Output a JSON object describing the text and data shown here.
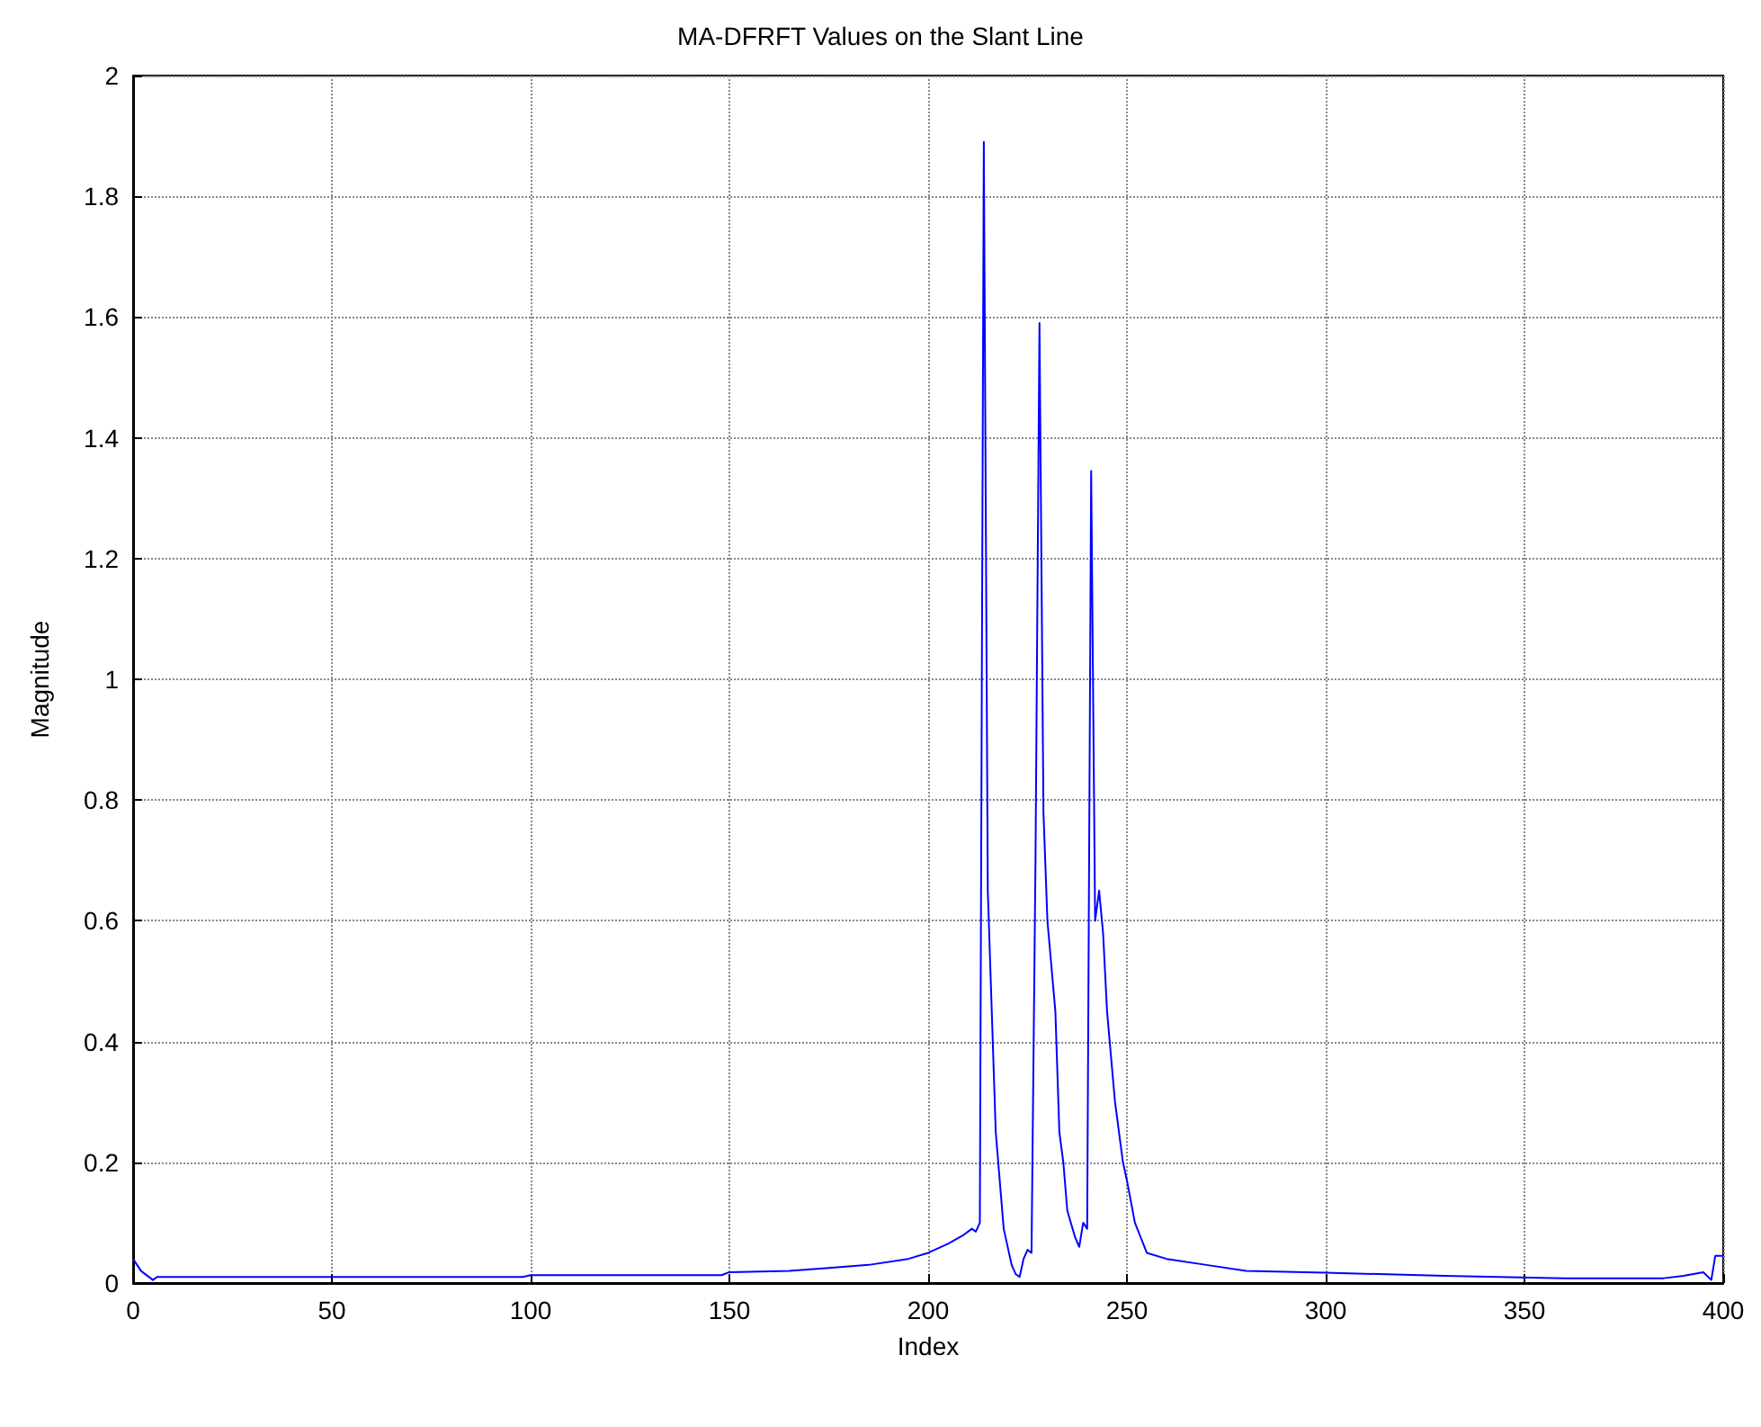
{
  "chart_data": {
    "type": "line",
    "title": "MA-DFRFT Values on the Slant Line",
    "xlabel": "Index",
    "ylabel": "Magnitude",
    "series": [
      {
        "color": "#0000ff",
        "x": [
          0,
          2,
          5,
          6,
          98,
          100,
          148,
          150,
          165,
          175,
          185,
          195,
          200,
          205,
          209,
          211,
          212,
          213,
          214,
          215,
          216,
          217,
          219,
          221,
          222,
          223,
          224,
          225,
          226,
          227,
          228,
          229,
          230,
          232,
          233,
          234,
          235,
          237,
          238,
          239,
          240,
          241,
          242,
          243,
          244,
          245,
          247,
          249,
          250,
          252,
          255,
          260,
          270,
          280,
          300,
          330,
          360,
          385,
          390,
          395,
          397,
          398,
          400
        ],
        "values": [
          0.04,
          0.02,
          0.005,
          0.01,
          0.01,
          0.013,
          0.013,
          0.018,
          0.02,
          0.025,
          0.03,
          0.04,
          0.05,
          0.065,
          0.08,
          0.09,
          0.085,
          0.1,
          1.89,
          0.65,
          0.45,
          0.25,
          0.09,
          0.03,
          0.015,
          0.01,
          0.04,
          0.055,
          0.05,
          0.7,
          1.59,
          0.78,
          0.6,
          0.45,
          0.25,
          0.2,
          0.12,
          0.075,
          0.06,
          0.1,
          0.09,
          1.345,
          0.6,
          0.65,
          0.58,
          0.45,
          0.3,
          0.2,
          0.17,
          0.1,
          0.05,
          0.04,
          0.03,
          0.02,
          0.017,
          0.012,
          0.008,
          0.008,
          0.012,
          0.018,
          0.005,
          0.045,
          0.045
        ]
      }
    ],
    "xlim": [
      0,
      400
    ],
    "xticks": [
      0,
      50,
      100,
      150,
      200,
      250,
      300,
      350,
      400
    ],
    "ylim": [
      0,
      2
    ],
    "yticks": [
      0,
      0.2,
      0.4,
      0.6,
      0.8,
      1,
      1.2,
      1.4,
      1.6,
      1.8,
      2
    ],
    "grid": true,
    "marker": "none",
    "line_style": "solid"
  }
}
